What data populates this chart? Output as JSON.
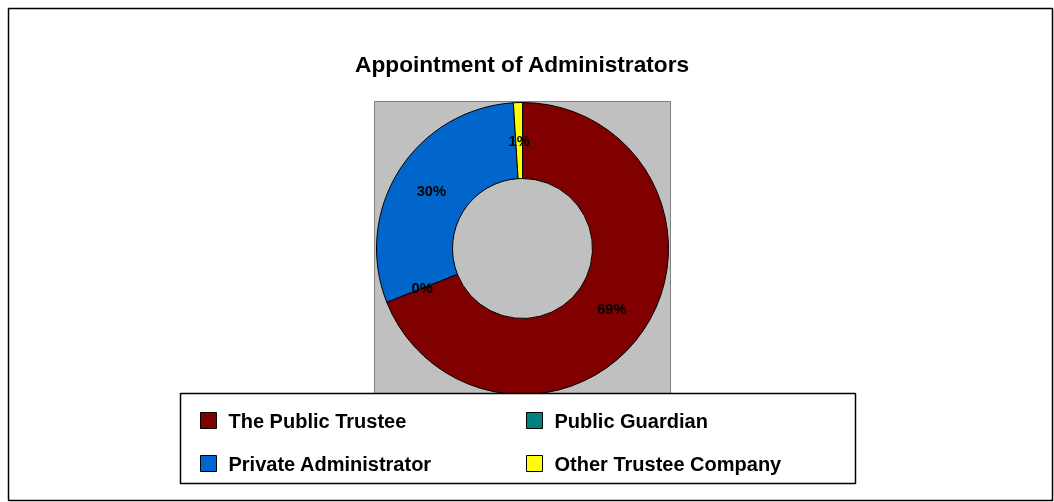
{
  "chart_data": {
    "type": "donut",
    "title": "Appointment of Administrators",
    "categories": [
      "The Public Trustee",
      "Public Guardian",
      "Private Administrator",
      "Other Trustee Company"
    ],
    "values": [
      69,
      0,
      30,
      1
    ],
    "colors": [
      "#800000",
      "#008080",
      "#0066cc",
      "#ffff00"
    ],
    "value_labels": [
      "69%",
      "0%",
      "30%",
      "1%"
    ],
    "legend": "bottom"
  }
}
